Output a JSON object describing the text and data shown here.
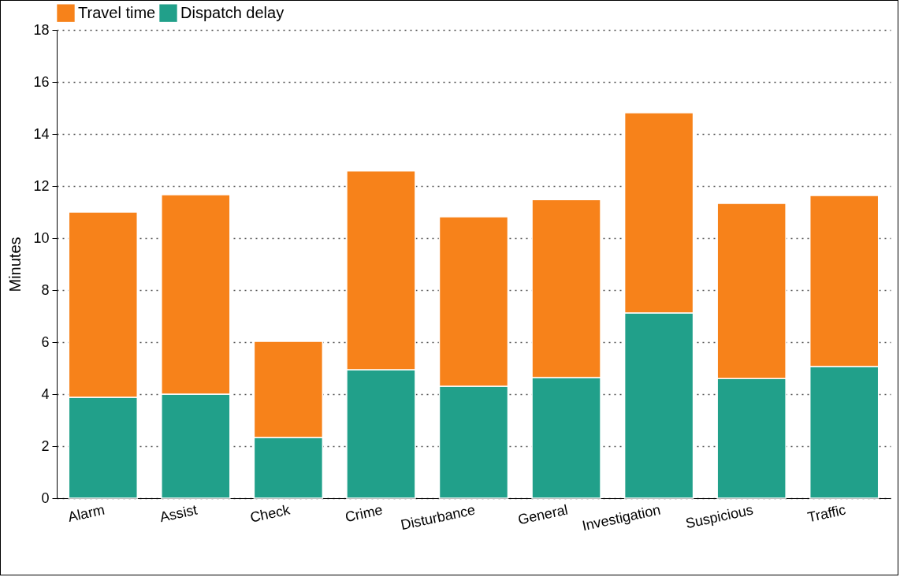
{
  "chart_data": {
    "type": "bar",
    "stacked": true,
    "ylabel": "Minutes",
    "categories": [
      "Alarm",
      "Assist",
      "Check",
      "Crime",
      "Disturbance",
      "General",
      "Investigation",
      "Suspicious",
      "Traffic"
    ],
    "series": [
      {
        "name": "Dispatch delay",
        "color": "#21a08a",
        "values": [
          3.88,
          4.0,
          2.33,
          4.94,
          4.3,
          4.64,
          7.12,
          4.6,
          5.06
        ]
      },
      {
        "name": "Travel time",
        "color": "#f7821a",
        "values": [
          7.12,
          7.67,
          3.7,
          7.64,
          6.52,
          6.84,
          7.7,
          6.73,
          6.58
        ]
      }
    ],
    "ylim": [
      0,
      18
    ],
    "yticks": [
      0,
      2,
      4,
      6,
      8,
      10,
      12,
      14,
      16,
      18
    ],
    "grid": "y",
    "legend": "top"
  }
}
